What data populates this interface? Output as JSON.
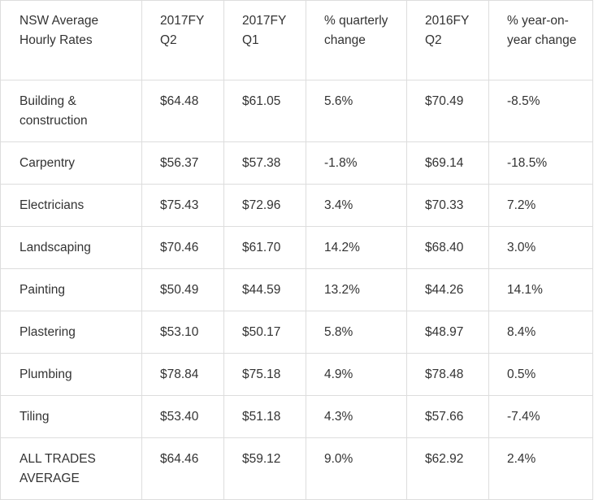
{
  "table": {
    "headers": [
      "NSW Average Hourly Rates",
      "2017FY Q2",
      "2017FY Q1",
      "% quarterly change",
      "2016FY Q2",
      "% year-on-year change"
    ],
    "rows": [
      [
        "Building & construction",
        "$64.48",
        "$61.05",
        "5.6%",
        "$70.49",
        "-8.5%"
      ],
      [
        "Carpentry",
        "$56.37",
        "$57.38",
        "-1.8%",
        "$69.14",
        "-18.5%"
      ],
      [
        "Electricians",
        "$75.43",
        "$72.96",
        "3.4%",
        "$70.33",
        "7.2%"
      ],
      [
        "Landscaping",
        "$70.46",
        "$61.70",
        "14.2%",
        "$68.40",
        "3.0%"
      ],
      [
        "Painting",
        "$50.49",
        "$44.59",
        "13.2%",
        "$44.26",
        "14.1%"
      ],
      [
        "Plastering",
        "$53.10",
        "$50.17",
        "5.8%",
        "$48.97",
        "8.4%"
      ],
      [
        "Plumbing",
        "$78.84",
        "$75.18",
        "4.9%",
        "$78.48",
        "0.5%"
      ],
      [
        "Tiling",
        "$53.40",
        "$51.18",
        "4.3%",
        "$57.66",
        "-7.4%"
      ],
      [
        "ALL TRADES AVERAGE",
        "$64.46",
        "$59.12",
        "9.0%",
        "$62.92",
        "2.4%"
      ]
    ]
  }
}
